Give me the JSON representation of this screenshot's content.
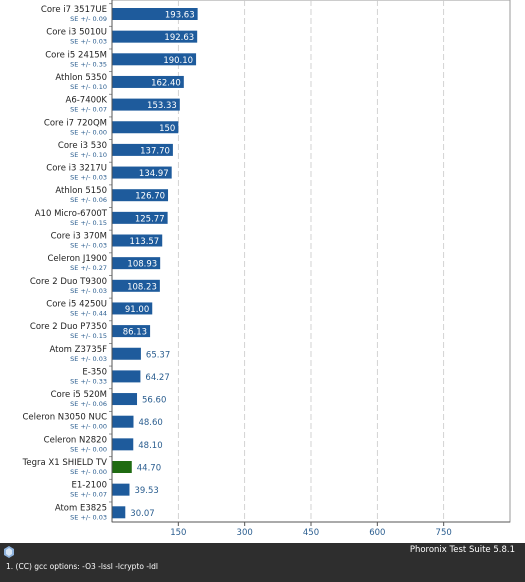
{
  "chart_data": {
    "type": "bar",
    "orientation": "horizontal",
    "categories": [
      "Core i7 3517UE",
      "Core i3 5010U",
      "Core i5 2415M",
      "Athlon 5350",
      "A6-7400K",
      "Core i7 720QM",
      "Core i3 530",
      "Core i3 3217U",
      "Athlon 5150",
      "A10 Micro-6700T",
      "Core i3 370M",
      "Celeron J1900",
      "Core 2 Duo T9300",
      "Core i5 4250U",
      "Core 2 Duo P7350",
      "Atom Z3735F",
      "E-350",
      "Core i5 520M",
      "Celeron N3050 NUC",
      "Celeron N2820",
      "Tegra X1 SHIELD TV",
      "E1-2100",
      "Atom E3825"
    ],
    "se_labels": [
      "SE +/- 0.09",
      "SE +/- 0.03",
      "SE +/- 0.35",
      "SE +/- 0.10",
      "SE +/- 0.07",
      "SE +/- 0.00",
      "SE +/- 0.10",
      "SE +/- 0.03",
      "SE +/- 0.06",
      "SE +/- 0.15",
      "SE +/- 0.03",
      "SE +/- 0.27",
      "SE +/- 0.03",
      "SE +/- 0.44",
      "SE +/- 0.15",
      "SE +/- 0.03",
      "SE +/- 0.33",
      "SE +/- 0.06",
      "SE +/- 0.00",
      "SE +/- 0.00",
      "SE +/- 0.00",
      "SE +/- 0.07",
      "SE +/- 0.03"
    ],
    "values": [
      193.63,
      192.63,
      190.1,
      162.4,
      153.33,
      150,
      137.7,
      134.97,
      126.7,
      125.77,
      113.57,
      108.93,
      108.23,
      91.0,
      86.13,
      65.37,
      64.27,
      56.6,
      48.6,
      48.1,
      44.7,
      39.53,
      30.07
    ],
    "value_labels": [
      "193.63",
      "192.63",
      "190.10",
      "162.40",
      "153.33",
      "150",
      "137.70",
      "134.97",
      "126.70",
      "125.77",
      "113.57",
      "108.93",
      "108.23",
      "91.00",
      "86.13",
      "65.37",
      "64.27",
      "56.60",
      "48.60",
      "48.10",
      "44.70",
      "39.53",
      "30.07"
    ],
    "highlight_index": 20,
    "xticks": [
      150,
      300,
      450,
      600,
      750
    ],
    "xlim": [
      0,
      900
    ],
    "grid": true,
    "colors": {
      "bar": "#1e5b9c",
      "highlight": "#1f6b12",
      "label_text": "#222222",
      "se_text": "#2a5d8f",
      "value_outside": "#2a5d8f",
      "grid": "#c8c8c8",
      "tick_text": "#2a5d8f"
    }
  },
  "footer": {
    "suite": "Phoronix Test Suite 5.8.1",
    "note": "1. (CC) gcc options: -O3 -lssl -lcrypto -ldl"
  }
}
